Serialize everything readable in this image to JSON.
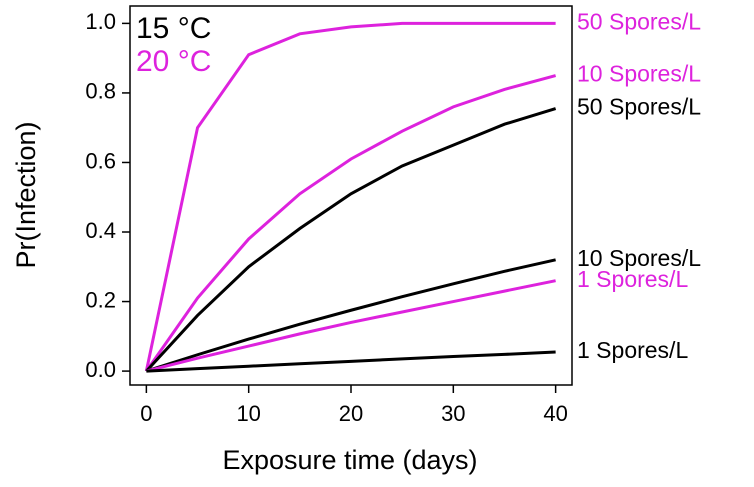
{
  "chart_data": {
    "type": "line",
    "x_label": "Exposure time (days)",
    "y_label": "Pr(Infection)",
    "x": [
      0,
      5,
      10,
      15,
      20,
      25,
      30,
      35,
      40
    ],
    "series": [
      {
        "name": "50 Spores/L",
        "color": "#dd22dd",
        "values": [
          0,
          0.7,
          0.91,
          0.97,
          0.99,
          1.0,
          1.0,
          1.0,
          1.0
        ]
      },
      {
        "name": "10 Spores/L",
        "color": "#dd22dd",
        "values": [
          0,
          0.21,
          0.38,
          0.51,
          0.61,
          0.69,
          0.76,
          0.81,
          0.85
        ]
      },
      {
        "name": "50 Spores/L",
        "color": "#000000",
        "values": [
          0,
          0.16,
          0.3,
          0.41,
          0.51,
          0.59,
          0.65,
          0.71,
          0.755
        ]
      },
      {
        "name": "10 Spores/L",
        "color": "#000000",
        "values": [
          0,
          0.047,
          0.092,
          0.135,
          0.175,
          0.214,
          0.251,
          0.287,
          0.32
        ]
      },
      {
        "name": "1 Spores/L",
        "color": "#dd22dd",
        "values": [
          0,
          0.037,
          0.072,
          0.107,
          0.14,
          0.17,
          0.2,
          0.23,
          0.26
        ]
      },
      {
        "name": "1 Spores/L",
        "color": "#000000",
        "values": [
          0,
          0.007,
          0.014,
          0.021,
          0.028,
          0.035,
          0.042,
          0.048,
          0.055
        ]
      }
    ],
    "legend": [
      {
        "label": "15 °C",
        "color": "#000000"
      },
      {
        "label": "20 °C",
        "color": "#dd22dd"
      }
    ],
    "xlim": [
      -1.6,
      41.6
    ],
    "ylim": [
      -0.04,
      1.05
    ],
    "xticks": [
      0,
      10,
      20,
      30,
      40
    ],
    "yticks": [
      {
        "value": 0,
        "label": "0.0"
      },
      0.2,
      0.4,
      0.6,
      0.8,
      {
        "value": 1,
        "label": "1.0"
      }
    ]
  }
}
